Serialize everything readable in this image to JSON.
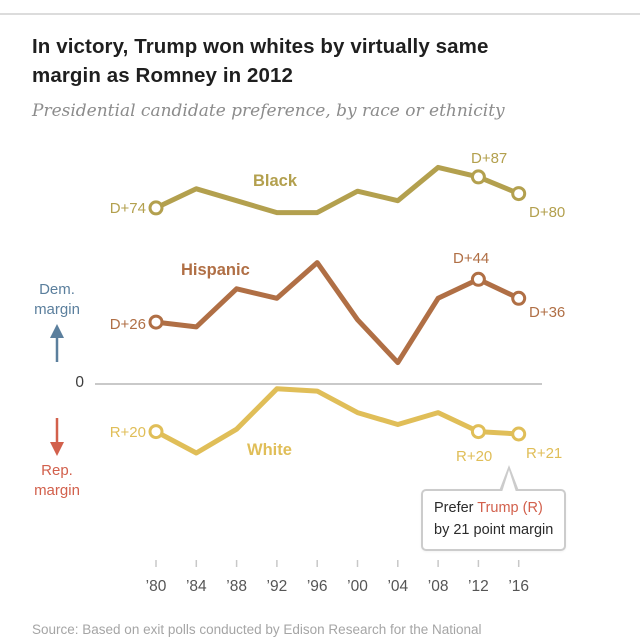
{
  "header": {
    "title_lines": [
      "In victory, Trump won whites by virtually same",
      "margin as Romney in 2012"
    ],
    "subtitle": "Presidential candidate preference, by race or ethnicity"
  },
  "axis": {
    "dem_line1": "Dem.",
    "dem_line2": "margin",
    "rep_line1": "Rep.",
    "rep_line2": "margin",
    "zero": "0",
    "dem_color": "#5b7f9d",
    "rep_color": "#d2604c"
  },
  "annotations": {
    "black_1980": "D+74",
    "black_2012": "D+87",
    "black_2016": "D+80",
    "hispanic_1980": "D+26",
    "hispanic_2012": "D+44",
    "hispanic_2016": "D+36",
    "white_1980": "R+20",
    "white_2012": "R+20",
    "white_2016": "R+21"
  },
  "tooltip": {
    "prefix": "Prefer ",
    "candidate": "Trump (R)",
    "line2": "by 21 point margin",
    "candidate_color": "#d2604c"
  },
  "source": "Source: Based on exit polls conducted by Edison Research for the National",
  "chart_data": {
    "type": "line",
    "title": "In victory, Trump won whites by virtually same margin as Romney in 2012",
    "subtitle": "Presidential candidate preference, by race or ethnicity",
    "x": [
      "’80",
      "’84",
      "’88",
      "’92",
      "’96",
      "’00",
      "’04",
      "’08",
      "’12",
      "’16"
    ],
    "y_unit": "margin in points (positive = Dem advantage, negative = Rep advantage)",
    "baseline": 0,
    "ylim": [
      -40,
      100
    ],
    "grid": false,
    "legend": "inline series labels",
    "marker_indices": [
      0,
      8,
      9
    ],
    "series": [
      {
        "name": "Black",
        "color": "#b3a04e",
        "values": [
          74,
          82,
          77,
          72,
          72,
          81,
          77,
          91,
          87,
          80
        ]
      },
      {
        "name": "Hispanic",
        "color": "#b06f45",
        "values": [
          26,
          24,
          40,
          36,
          51,
          27,
          9,
          36,
          44,
          36
        ]
      },
      {
        "name": "White",
        "color": "#e0be58",
        "values": [
          -20,
          -29,
          -19,
          -2,
          -3,
          -12,
          -17,
          -12,
          -20,
          -21
        ]
      }
    ]
  }
}
